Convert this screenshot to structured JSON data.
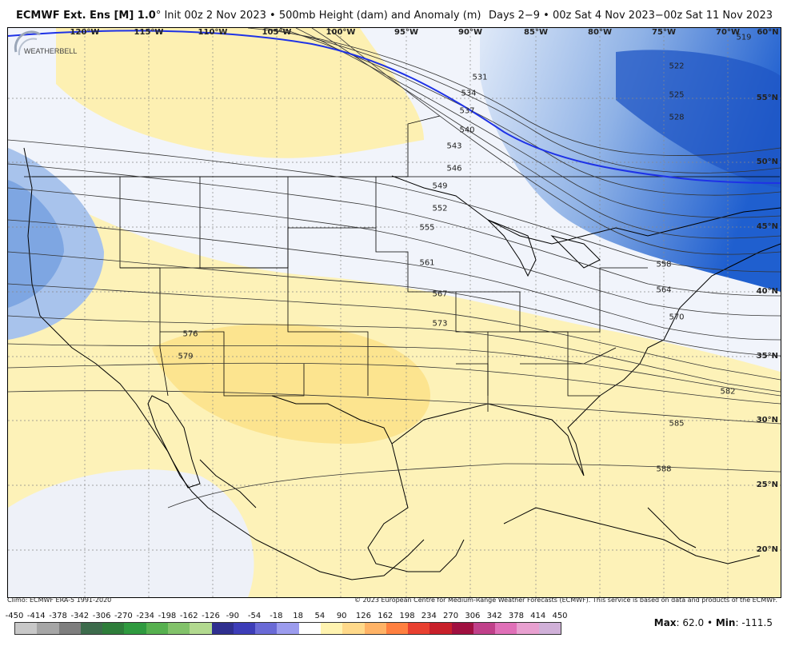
{
  "header": {
    "model": "ECMWF Ext. Ens [M] 1.0",
    "degree": "°",
    "init": "Init 00z 2 Nov 2023",
    "sep": "•",
    "field": "500mb Height (dam) and Anomaly (m)",
    "valid": "Days 2−9 • 00z Sat 4 Nov 2023−00z Sat 11 Nov 2023"
  },
  "map": {
    "longitude_labels": [
      "120°W",
      "115°W",
      "110°W",
      "105°W",
      "100°W",
      "95°W",
      "90°W",
      "85°W",
      "80°W",
      "75°W",
      "70°W",
      "60°N"
    ],
    "latitude_labels": [
      "55°N",
      "50°N",
      "45°N",
      "40°N",
      "35°N",
      "30°N",
      "25°N",
      "20°N"
    ],
    "contour_labels": [
      "519",
      "522",
      "525",
      "528",
      "531",
      "534",
      "537",
      "540",
      "543",
      "546",
      "549",
      "552",
      "555",
      "558",
      "561",
      "564",
      "567",
      "570",
      "573",
      "576",
      "579",
      "582",
      "585",
      "588"
    ],
    "highlight_contour": "540",
    "highlight_color": "#1e32e6",
    "logo_text": "WEATHERBELL"
  },
  "footer": {
    "climo": "Climo: ECMWF ERA-5 1991-2020",
    "copyright": "© 2023 European Centre for Medium-Range Weather Forecasts (ECMWF). This service is based on data and products of the ECMWF."
  },
  "colorbar": {
    "ticks": [
      "-450",
      "-414",
      "-378",
      "-342",
      "-306",
      "-270",
      "-234",
      "-198",
      "-162",
      "-126",
      "-90",
      "-54",
      "-18",
      "18",
      "54",
      "90",
      "126",
      "162",
      "198",
      "234",
      "270",
      "306",
      "342",
      "378",
      "414",
      "450"
    ],
    "colors": [
      "#c8c8c8",
      "#a6a6a6",
      "#7e7e7e",
      "#3d6b4c",
      "#2e7d3a",
      "#2f9a3f",
      "#56b04f",
      "#82c26a",
      "#b2d98f",
      "#2f2f8f",
      "#3d3db8",
      "#6a6ad6",
      "#9c9cee",
      "#ffffff",
      "#fff3b0",
      "#ffd98a",
      "#ffb366",
      "#ff8040",
      "#e84030",
      "#c8202a",
      "#a01040",
      "#c0408a",
      "#e070b8",
      "#e8a0d0",
      "#d0b0d8"
    ]
  },
  "stats": {
    "max_label": "Max",
    "max_value": "62.0",
    "sep": "•",
    "min_label": "Min",
    "min_value": "-111.5"
  }
}
